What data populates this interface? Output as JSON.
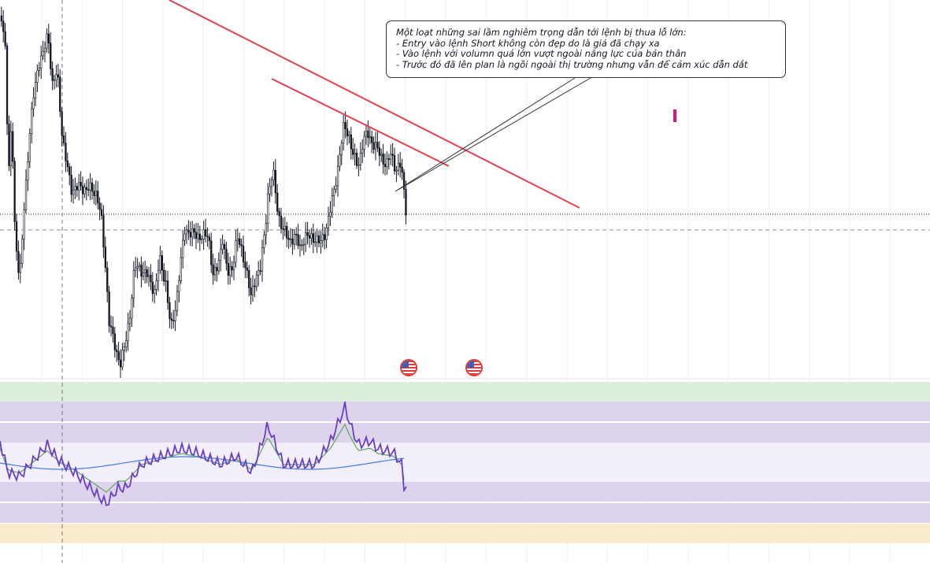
{
  "annotation": {
    "title": "Một loạt những sai lầm nghiêm trọng dẫn tới lệnh bị thua lỗ lớn:",
    "lines": [
      "- Entry vào lệnh Short không còn đẹp do là giá đã chạy xa",
      "- Vào lệnh với volumn quá lớn vượt ngoài năng lực của bản thân",
      "- Trước đó đã lên plan là ngồi ngoài thị trường nhưng vẫn để cảm xúc dẫn dắt"
    ]
  },
  "economic_events": [
    {
      "icon": "us-flag-icon"
    },
    {
      "icon": "us-flag-icon"
    }
  ],
  "colors": {
    "trendline": "#e0424f",
    "candle": "#131722",
    "rsi_line": "#6a3fc6",
    "rsi_ma": "#5aa854",
    "rsi_ma2": "#3f7ee0",
    "marker": "#e0137a",
    "band_green": "#dcefdc",
    "band_purple": "#ddd3ec",
    "band_light": "#f2eefa",
    "band_orange": "#fbecd0"
  }
}
